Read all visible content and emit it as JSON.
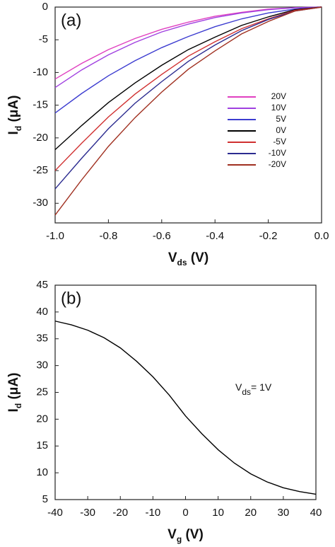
{
  "chart_data": [
    {
      "type": "line",
      "annotation": "(a)",
      "xlabel": [
        "V",
        "ds",
        " (V)"
      ],
      "ylabel": [
        "I",
        "d",
        " (μA)"
      ],
      "x": [
        -1.0,
        -0.9,
        -0.8,
        -0.7,
        -0.6,
        -0.5,
        -0.4,
        -0.3,
        -0.2,
        -0.1,
        0.0
      ],
      "xlim": [
        -1.0,
        0.0
      ],
      "xticks": [
        {
          "value": -1,
          "label": "-1.0"
        },
        -0.8,
        -0.6,
        -0.4,
        -0.2,
        {
          "value": 0,
          "label": "0.0"
        }
      ],
      "ylim": [
        -33,
        0
      ],
      "yticks": [
        0,
        -5,
        -10,
        -15,
        -20,
        -25,
        -30
      ],
      "legend": true,
      "series": [
        {
          "name": "20V",
          "color": "#e040c0",
          "values": [
            -11,
            -8.6,
            -6.5,
            -4.8,
            -3.4,
            -2.3,
            -1.4,
            -0.8,
            -0.3,
            -0.1,
            0
          ]
        },
        {
          "name": "10V",
          "color": "#a040e0",
          "values": [
            -12.3,
            -9.6,
            -7.3,
            -5.4,
            -3.8,
            -2.6,
            -1.6,
            -0.9,
            -0.4,
            -0.1,
            0
          ]
        },
        {
          "name": "5V",
          "color": "#3c3cd0",
          "values": [
            -16.2,
            -13.2,
            -10.5,
            -8.2,
            -6.2,
            -4.5,
            -3.0,
            -1.8,
            -0.9,
            -0.3,
            0
          ]
        },
        {
          "name": "0V",
          "color": "#000000",
          "values": [
            -21.8,
            -18.1,
            -14.6,
            -11.6,
            -8.9,
            -6.5,
            -4.6,
            -2.8,
            -1.5,
            -0.4,
            0
          ]
        },
        {
          "name": "-5V",
          "color": "#d03030",
          "values": [
            -25,
            -20.8,
            -16.8,
            -13.3,
            -10.3,
            -7.5,
            -5.3,
            -3.3,
            -1.8,
            -0.5,
            0
          ]
        },
        {
          "name": "-10V",
          "color": "#2c2c90",
          "values": [
            -27.8,
            -23.1,
            -18.6,
            -14.7,
            -11.4,
            -8.3,
            -5.8,
            -3.6,
            -1.9,
            -0.6,
            0
          ]
        },
        {
          "name": "-20V",
          "color": "#a03020",
          "values": [
            -31.8,
            -26.4,
            -21.3,
            -16.9,
            -13.0,
            -9.5,
            -6.7,
            -4.1,
            -2.2,
            -0.6,
            0
          ]
        }
      ]
    },
    {
      "type": "line",
      "annotation": "(b)",
      "note": [
        "V",
        "ds",
        "= 1V"
      ],
      "xlabel": [
        "V",
        "g",
        " (V)"
      ],
      "ylabel": [
        "I",
        "d",
        " (μA)"
      ],
      "x": [
        -40,
        -35,
        -30,
        -25,
        -20,
        -15,
        -10,
        -5,
        0,
        5,
        10,
        15,
        20,
        25,
        30,
        35,
        40
      ],
      "xlim": [
        -40,
        40
      ],
      "xticks": [
        -40,
        -30,
        -20,
        -10,
        0,
        10,
        20,
        30,
        40
      ],
      "ylim": [
        5,
        45
      ],
      "yticks": [
        5,
        10,
        15,
        20,
        25,
        30,
        35,
        40,
        45
      ],
      "series": [
        {
          "color": "#000000",
          "values": [
            38.3,
            37.6,
            36.6,
            35.2,
            33.3,
            30.8,
            27.9,
            24.5,
            20.6,
            17.3,
            14.3,
            11.8,
            9.8,
            8.3,
            7.2,
            6.5,
            6.0
          ]
        }
      ]
    }
  ]
}
